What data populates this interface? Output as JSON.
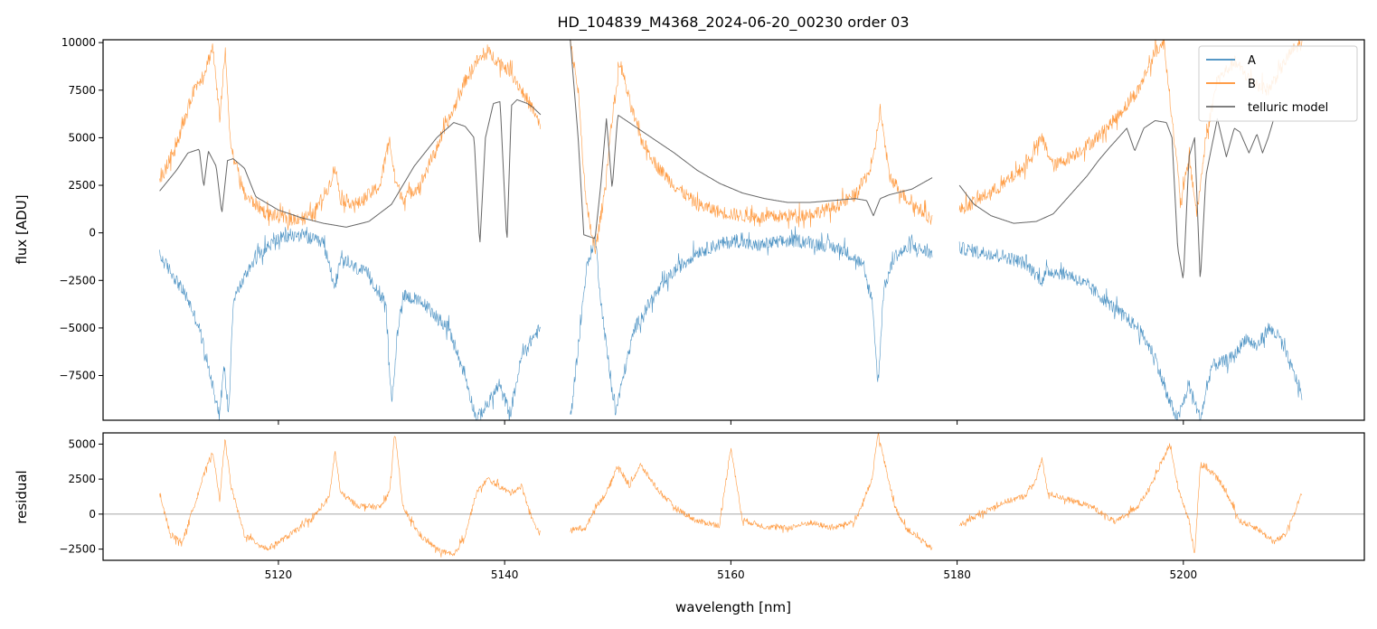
{
  "chart_data": [
    {
      "type": "line",
      "panel": "main",
      "title": "HD_104839_M4368_2024-06-20_00230  order 03",
      "xlabel": "",
      "ylabel": "flux [ADU]",
      "xlim": [
        5104.5,
        5216.0
      ],
      "ylim": [
        -9850,
        10150
      ],
      "yticks": [
        -7500,
        -5000,
        -2500,
        0,
        2500,
        5000,
        7500,
        10000
      ],
      "ytick_labels": [
        "−7500",
        "−5000",
        "−2500",
        "0",
        "2500",
        "5000",
        "7500",
        "10000"
      ],
      "xticks": [
        5120,
        5140,
        5160,
        5180,
        5200
      ],
      "grid": false,
      "legend_position": "top-right",
      "legend": [
        "A",
        "B",
        "telluric model"
      ],
      "series": [
        {
          "name": "A",
          "color": "#1f77b4",
          "segments": [
            {
              "x": [
                5109.5,
                5111,
                5112,
                5113,
                5114,
                5114.8,
                5115.2,
                5115.6,
                5116,
                5118,
                5120,
                5122,
                5124,
                5125,
                5125.5,
                5126,
                5128,
                5129.5,
                5130,
                5130.5,
                5131,
                5133,
                5135,
                5136.5,
                5137.5,
                5138.5,
                5139.5,
                5140.5,
                5141.5,
                5142.5,
                5143.2
              ],
              "y": [
                -1200,
                -2500,
                -3500,
                -5000,
                -7500,
                -9500,
                -7000,
                -9500,
                -3500,
                -1200,
                -300,
                -100,
                -600,
                -2800,
                -1500,
                -1600,
                -2200,
                -3800,
                -9000,
                -5500,
                -3200,
                -3800,
                -5000,
                -7500,
                -9800,
                -9000,
                -8000,
                -9500,
                -6500,
                -5500,
                -5000
              ]
            },
            {
              "x": [
                5145.8,
                5146.5,
                5147.2,
                5148,
                5148.5,
                5149.2,
                5149.8,
                5150.5,
                5151.5,
                5153,
                5155,
                5157,
                5159,
                5160.5,
                5162,
                5164,
                5166,
                5168,
                5170,
                5171.5,
                5172.5,
                5173,
                5173.5,
                5174.5,
                5176,
                5177.8
              ],
              "y": [
                -9800,
                -6000,
                -2000,
                -200,
                -3500,
                -7000,
                -9500,
                -7500,
                -5000,
                -3500,
                -2000,
                -1000,
                -600,
                -400,
                -700,
                -500,
                -400,
                -600,
                -900,
                -1600,
                -3500,
                -8000,
                -3000,
                -1200,
                -700,
                -1100
              ]
            },
            {
              "x": [
                5180.2,
                5182,
                5184,
                5186,
                5187.5,
                5188,
                5190,
                5192,
                5194,
                5196,
                5197.5,
                5198.5,
                5199.5,
                5200.5,
                5201.5,
                5202.5,
                5203.5,
                5204.5,
                5205.5,
                5206.5,
                5207.5,
                5208.5,
                5209.5,
                5210.5
              ],
              "y": [
                -800,
                -1000,
                -1200,
                -1600,
                -2500,
                -2000,
                -2200,
                -3000,
                -4000,
                -5000,
                -6500,
                -8500,
                -9800,
                -8000,
                -9800,
                -7000,
                -6800,
                -6500,
                -5500,
                -6000,
                -5000,
                -5500,
                -7000,
                -8500
              ]
            }
          ]
        },
        {
          "name": "B",
          "color": "#ff7f0e",
          "segments": [
            {
              "x": [
                5109.5,
                5110.5,
                5111.5,
                5112.5,
                5113.5,
                5114.2,
                5114.8,
                5115.3,
                5115.8,
                5117,
                5119,
                5121,
                5123,
                5124.5,
                5125,
                5125.5,
                5127,
                5129,
                5129.8,
                5130.3,
                5131,
                5132.5,
                5134,
                5135.5,
                5136.5,
                5137.5,
                5138,
                5138.5,
                5139.5,
                5140.5,
                5141.5,
                5142.5,
                5143.2
              ],
              "y": [
                2600,
                4000,
                5500,
                7500,
                8500,
                9800,
                6000,
                9500,
                4500,
                2000,
                1000,
                700,
                900,
                2500,
                3500,
                1800,
                1500,
                2500,
                5000,
                2800,
                1800,
                2500,
                4500,
                6500,
                8000,
                9000,
                9200,
                9500,
                9000,
                8500,
                7500,
                6500,
                5500
              ]
            },
            {
              "x": [
                5145.8,
                5146.5,
                5147.2,
                5148,
                5148.8,
                5149.5,
                5150.2,
                5151,
                5152,
                5153.5,
                5155,
                5157,
                5159,
                5161,
                5163,
                5165,
                5167,
                5169,
                5171,
                5172.5,
                5173.2,
                5174,
                5175.5,
                5177.8
              ],
              "y": [
                10000,
                7500,
                1500,
                -1000,
                2000,
                6000,
                9000,
                7000,
                5000,
                3500,
                2500,
                1500,
                1100,
                900,
                800,
                900,
                1000,
                1300,
                2000,
                3500,
                6500,
                3000,
                1800,
                700
              ]
            },
            {
              "x": [
                5180.2,
                5182,
                5184,
                5186,
                5187.5,
                5188.5,
                5190,
                5192,
                5194,
                5196,
                5197.5,
                5198.3,
                5199,
                5199.8,
                5200.5,
                5201.2,
                5202,
                5203,
                5204.5,
                5206,
                5207.5,
                5208.5,
                5209.5,
                5210.5
              ],
              "y": [
                1200,
                1800,
                2500,
                3500,
                5000,
                3500,
                4000,
                4800,
                6000,
                7500,
                9500,
                10000,
                6000,
                1500,
                4000,
                1000,
                5000,
                8000,
                9000,
                8000,
                7500,
                8500,
                9500,
                10000
              ]
            }
          ]
        },
        {
          "name": "telluric model",
          "color": "#555555",
          "segments": [
            {
              "x": [
                5109.5,
                5111,
                5112,
                5113,
                5113.4,
                5113.8,
                5114.5,
                5115,
                5115.5,
                5116,
                5117,
                5118,
                5120,
                5122,
                5124,
                5126,
                5128,
                5130,
                5132,
                5134,
                5135.5,
                5136.5,
                5137.3,
                5137.8,
                5138.3,
                5139,
                5139.6,
                5140.2,
                5140.6,
                5141.1,
                5142,
                5142.5,
                5143.2
              ],
              "y": [
                2200,
                3300,
                4200,
                4400,
                2400,
                4300,
                3500,
                1000,
                3800,
                3900,
                3400,
                1900,
                1200,
                800,
                500,
                300,
                600,
                1500,
                3500,
                5000,
                5800,
                5600,
                5000,
                -700,
                5000,
                6800,
                6900,
                -600,
                6700,
                7000,
                6800,
                6600,
                6200
              ]
            },
            {
              "x": [
                5145.8,
                5146.5,
                5147,
                5147.5,
                5148,
                5148.5,
                5149,
                5149.5,
                5150,
                5151,
                5153,
                5155,
                5157,
                5159,
                5161,
                5163,
                5165,
                5167,
                5169,
                5171,
                5172,
                5172.6,
                5173.2,
                5174,
                5176,
                5177.8
              ],
              "y": [
                10150,
                5000,
                -100,
                -200,
                -300,
                2500,
                6000,
                2300,
                6200,
                5800,
                5000,
                4200,
                3300,
                2600,
                2100,
                1800,
                1600,
                1600,
                1700,
                1800,
                1700,
                900,
                1800,
                2000,
                2300,
                2900
              ]
            },
            {
              "x": [
                5180.2,
                5181.5,
                5183,
                5185,
                5187,
                5188.5,
                5190,
                5191.5,
                5192.5,
                5193.5,
                5195,
                5195.7,
                5196.5,
                5197.5,
                5198.5,
                5199,
                5199.5,
                5200,
                5200.5,
                5201,
                5201.5,
                5202,
                5202.5,
                5203,
                5203.8,
                5204.5,
                5205,
                5205.8,
                5206.5,
                5207,
                5207.5,
                5208
              ],
              "y": [
                2500,
                1500,
                900,
                500,
                600,
                1000,
                2000,
                3000,
                3800,
                4500,
                5500,
                4300,
                5500,
                5900,
                5800,
                5000,
                -800,
                -2500,
                4000,
                5000,
                -2600,
                3000,
                4500,
                6000,
                4000,
                5500,
                5300,
                4200,
                5200,
                4200,
                5000,
                6000
              ]
            }
          ]
        }
      ]
    },
    {
      "type": "line",
      "panel": "residual",
      "title": "",
      "xlabel": "wavelength [nm]",
      "ylabel": "residual",
      "xlim": [
        5104.5,
        5216.0
      ],
      "ylim": [
        -3300,
        5800
      ],
      "yticks": [
        -2500,
        0,
        2500,
        5000
      ],
      "ytick_labels": [
        "−2500",
        "0",
        "2500",
        "5000"
      ],
      "xticks": [
        5120,
        5140,
        5160,
        5180,
        5200
      ],
      "grid": false,
      "reference_line": 0,
      "series": [
        {
          "name": "",
          "color": "#ff7f0e",
          "segments": [
            {
              "x": [
                5109.5,
                5110.5,
                5111.5,
                5112.5,
                5113.5,
                5114.2,
                5114.8,
                5115.3,
                5115.8,
                5117,
                5119,
                5121,
                5123,
                5124.5,
                5125,
                5125.5,
                5127,
                5129,
                5129.8,
                5130.3,
                5131,
                5132.5,
                5134,
                5135.5,
                5136.5,
                5137.5,
                5138.5,
                5139.5,
                5140.5,
                5141.5,
                5142.5,
                5143.2
              ],
              "y": [
                1300,
                -1500,
                -2000,
                500,
                3000,
                4500,
                1000,
                5500,
                2000,
                -1500,
                -2500,
                -1500,
                -300,
                1200,
                4500,
                1500,
                600,
                500,
                1500,
                5800,
                500,
                -1500,
                -2500,
                -3000,
                -1500,
                1500,
                2500,
                2000,
                1500,
                2000,
                -500,
                -1500
              ]
            },
            {
              "x": [
                5145.8,
                5146.5,
                5147.2,
                5148,
                5149,
                5150,
                5151,
                5152,
                5153.5,
                5155,
                5157,
                5159,
                5160,
                5161,
                5163,
                5165,
                5167,
                5169,
                5171,
                5172.5,
                5173,
                5173.5,
                5174.5,
                5175.5,
                5177.8
              ],
              "y": [
                -1200,
                -1000,
                -1000,
                500,
                1500,
                3500,
                2000,
                3500,
                1800,
                500,
                -500,
                -800,
                4800,
                -400,
                -900,
                -1000,
                -600,
                -1000,
                -500,
                2500,
                5800,
                4000,
                500,
                -1000,
                -2500
              ]
            },
            {
              "x": [
                5180.2,
                5182,
                5184,
                5186,
                5187,
                5187.5,
                5188,
                5190,
                5192,
                5194,
                5196,
                5197,
                5198,
                5198.8,
                5199.5,
                5200.5,
                5201,
                5201.5,
                5202.5,
                5203.5,
                5205,
                5206.5,
                5208,
                5209,
                5210.5
              ],
              "y": [
                -800,
                0,
                800,
                1300,
                2500,
                4000,
                1500,
                1000,
                500,
                -600,
                600,
                1800,
                3500,
                5000,
                2000,
                -500,
                -2800,
                3500,
                3000,
                2000,
                -500,
                -1000,
                -2000,
                -1500,
                1500
              ]
            }
          ]
        }
      ]
    }
  ]
}
